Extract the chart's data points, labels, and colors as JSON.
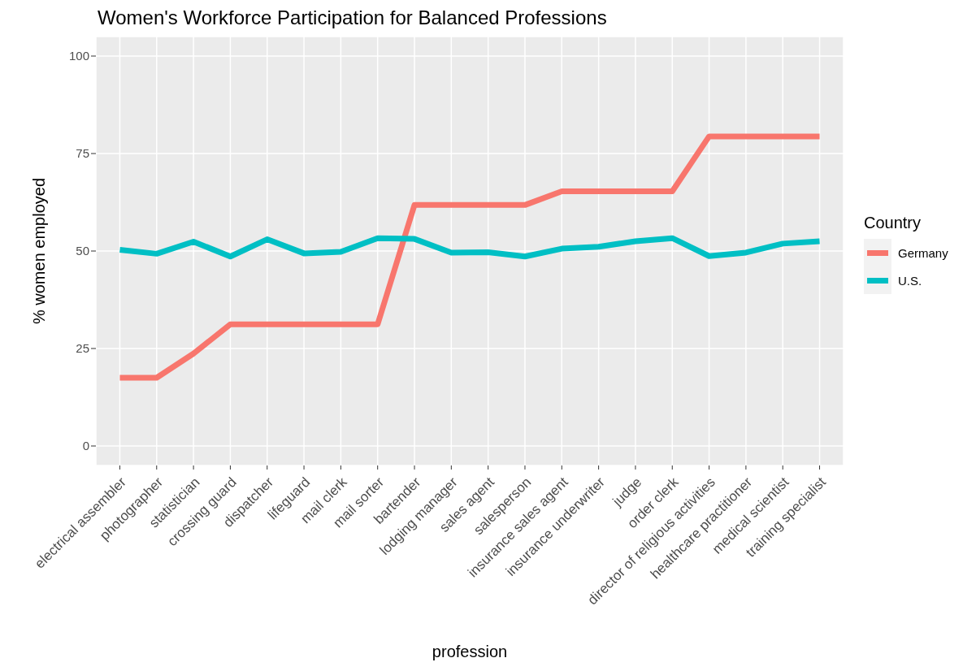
{
  "chart_data": {
    "type": "line",
    "title": "Women's Workforce Participation for Balanced Professions",
    "xlabel": "profession",
    "ylabel": "% women employed",
    "legend_title": "Country",
    "legend": "right",
    "grid": true,
    "categories": [
      "electrical assembler",
      "photographer",
      "statistician",
      "crossing guard",
      "dispatcher",
      "lifeguard",
      "mail clerk",
      "mail sorter",
      "bartender",
      "lodging manager",
      "sales agent",
      "salesperson",
      "insurance sales agent",
      "insurance underwriter",
      "judge",
      "order clerk",
      "director of religious activities",
      "healthcare practitioner",
      "medical scientist",
      "training specialist"
    ],
    "series": [
      {
        "name": "Germany",
        "color": "#f8766d",
        "values": [
          17.5,
          17.5,
          23.7,
          31.2,
          31.2,
          31.2,
          31.2,
          31.2,
          61.8,
          61.8,
          61.8,
          61.8,
          65.3,
          65.3,
          65.3,
          65.3,
          79.4,
          79.4,
          79.4,
          79.4
        ]
      },
      {
        "name": "U.S.",
        "color": "#00bfc4",
        "values": [
          50.3,
          49.3,
          52.4,
          48.6,
          53.0,
          49.4,
          49.8,
          53.3,
          53.1,
          49.6,
          49.7,
          48.6,
          50.6,
          51.1,
          52.5,
          53.3,
          48.7,
          49.6,
          51.9,
          52.5
        ]
      }
    ],
    "ylim": [
      -5,
      105
    ],
    "yticks": [
      0,
      25,
      50,
      75,
      100
    ]
  }
}
